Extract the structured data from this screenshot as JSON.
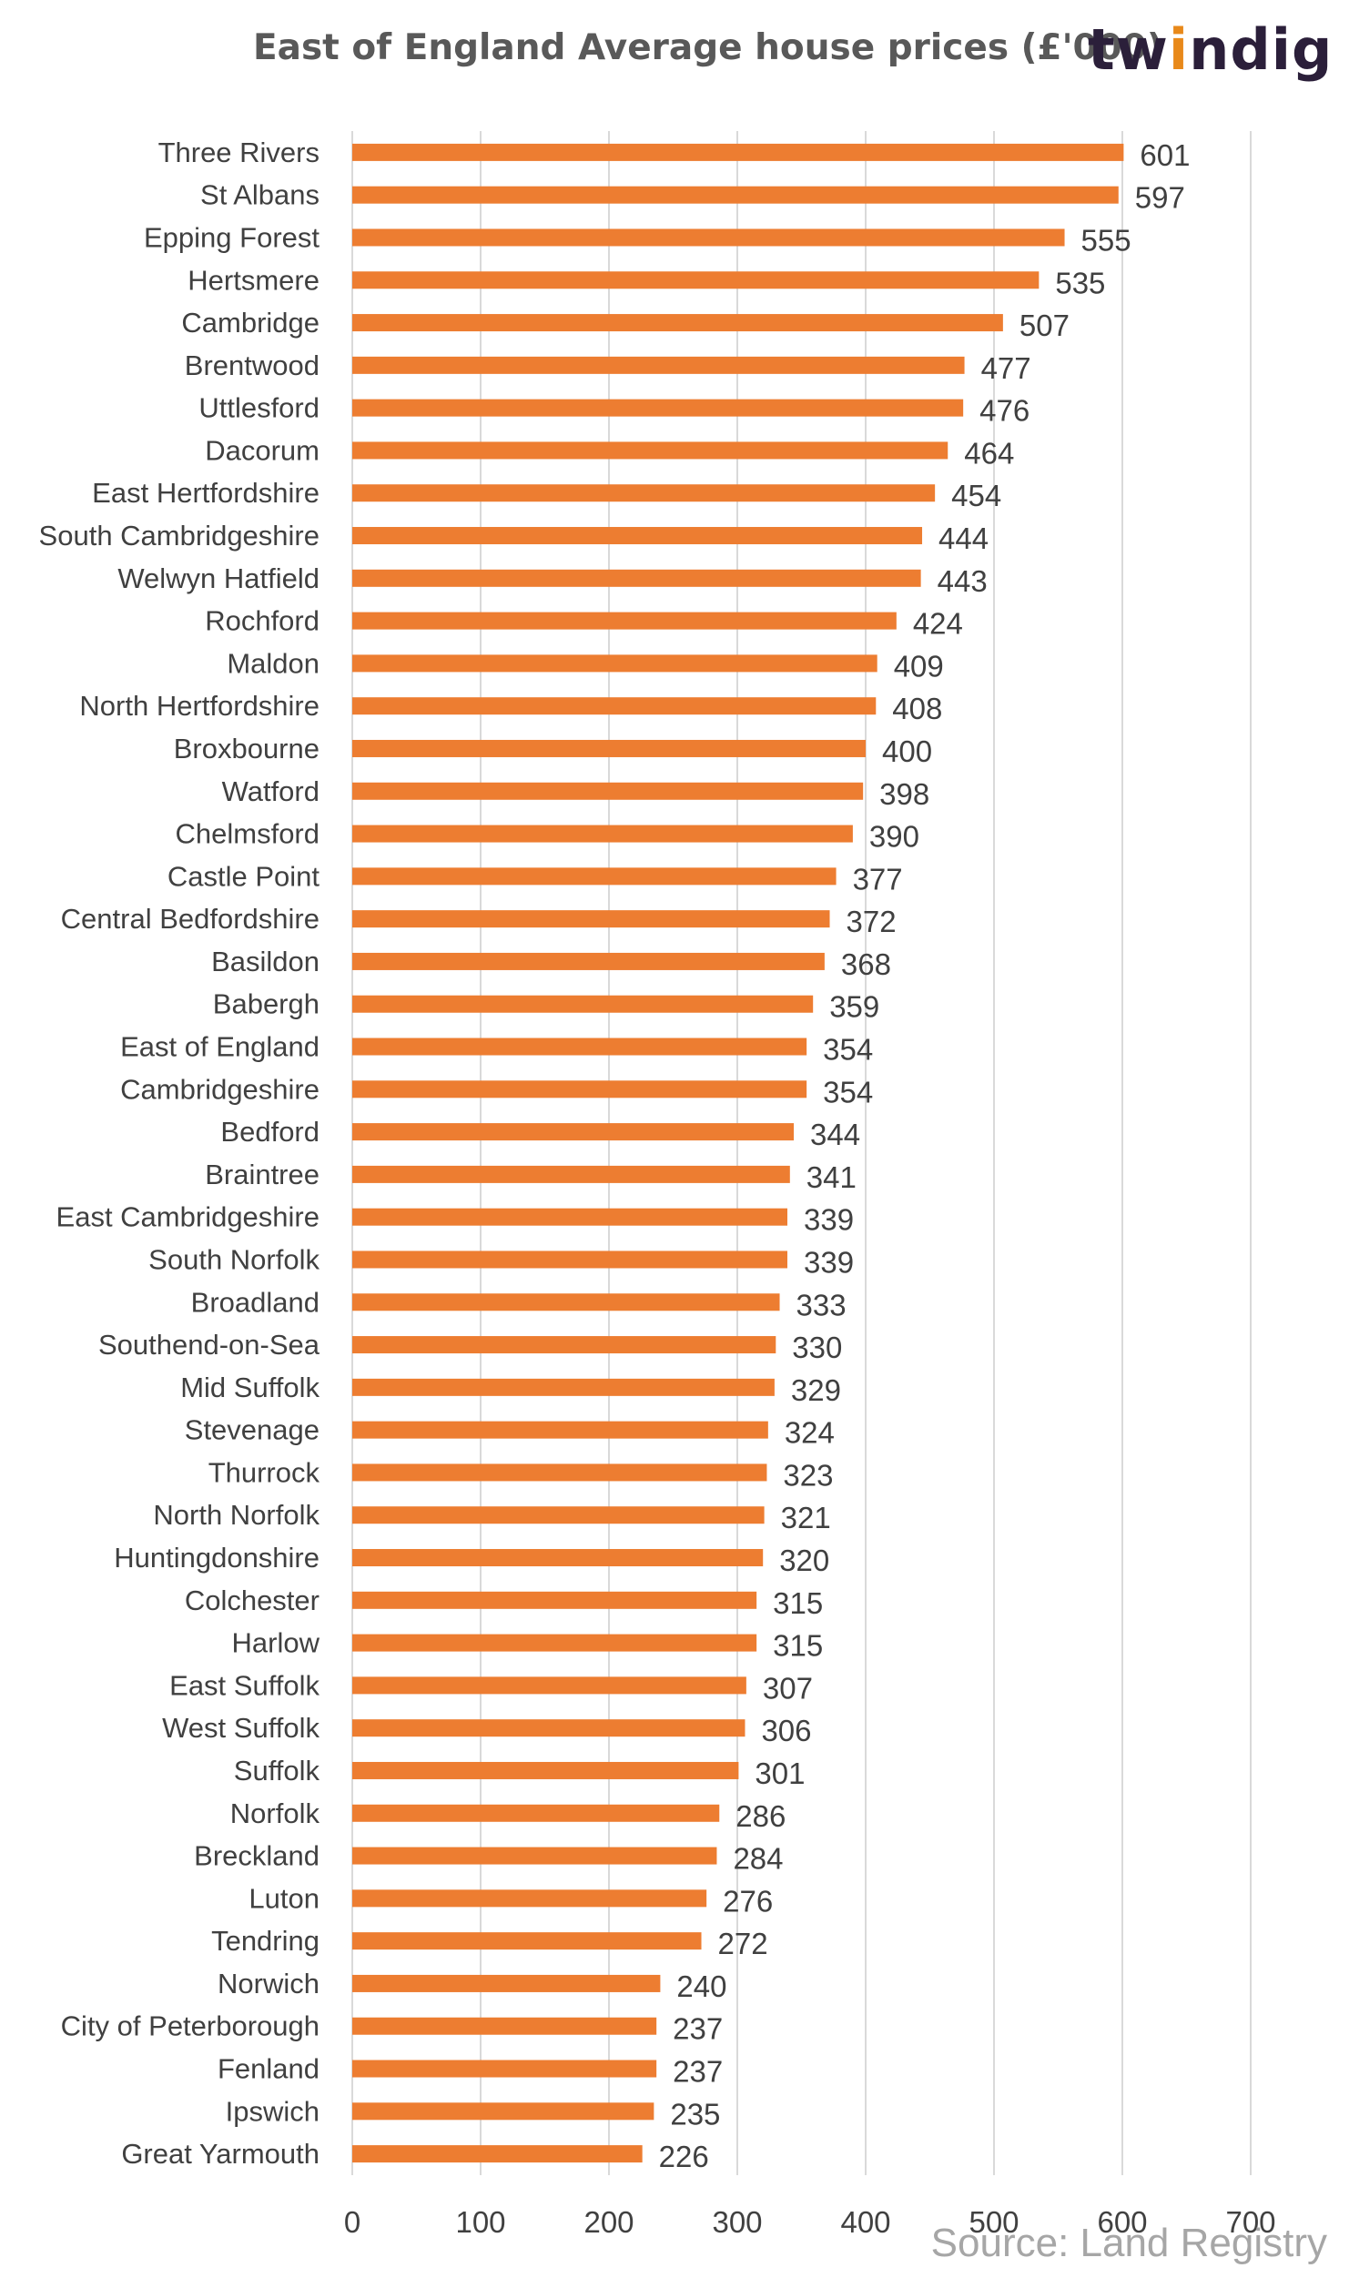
{
  "title": "East of England  Average house prices (£'000)",
  "brand": {
    "text": "twindig",
    "accent_color": "#e8891a",
    "text_color": "#2b1f3a"
  },
  "source": "Source: Land Registry",
  "colors": {
    "bar": "#ed7d31",
    "grid": "#d9d9d9",
    "label": "#404040"
  },
  "chart_data": {
    "type": "bar",
    "orientation": "horizontal",
    "title": "East of England  Average house prices (£'000)",
    "xlabel": "",
    "ylabel": "",
    "xlim": [
      0,
      700
    ],
    "x_ticks": [
      0,
      100,
      200,
      300,
      400,
      500,
      600,
      700
    ],
    "grid": "vertical",
    "data_labels": true,
    "categories": [
      "Three Rivers",
      "St Albans",
      "Epping Forest",
      "Hertsmere",
      "Cambridge",
      "Brentwood",
      "Uttlesford",
      "Dacorum",
      "East Hertfordshire",
      "South Cambridgeshire",
      "Welwyn Hatfield",
      "Rochford",
      "Maldon",
      "North Hertfordshire",
      "Broxbourne",
      "Watford",
      "Chelmsford",
      "Castle Point",
      "Central Bedfordshire",
      "Basildon",
      "Babergh",
      "East of England",
      "Cambridgeshire",
      "Bedford",
      "Braintree",
      "East Cambridgeshire",
      "South Norfolk",
      "Broadland",
      "Southend-on-Sea",
      "Mid Suffolk",
      "Stevenage",
      "Thurrock",
      "North Norfolk",
      "Huntingdonshire",
      "Colchester",
      "Harlow",
      "East Suffolk",
      "West Suffolk",
      "Suffolk",
      "Norfolk",
      "Breckland",
      "Luton",
      "Tendring",
      "Norwich",
      "City of Peterborough",
      "Fenland",
      "Ipswich",
      "Great Yarmouth"
    ],
    "values": [
      601,
      597,
      555,
      535,
      507,
      477,
      476,
      464,
      454,
      444,
      443,
      424,
      409,
      408,
      400,
      398,
      390,
      377,
      372,
      368,
      359,
      354,
      354,
      344,
      341,
      339,
      339,
      333,
      330,
      329,
      324,
      323,
      321,
      320,
      315,
      315,
      307,
      306,
      301,
      286,
      284,
      276,
      272,
      240,
      237,
      237,
      235,
      226
    ]
  }
}
